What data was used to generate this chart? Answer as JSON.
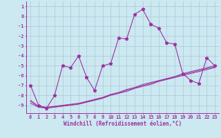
{
  "x": [
    0,
    1,
    2,
    3,
    4,
    5,
    6,
    7,
    8,
    9,
    10,
    11,
    12,
    13,
    14,
    15,
    16,
    17,
    18,
    19,
    20,
    21,
    22,
    23
  ],
  "y_main": [
    -7,
    -9,
    -9.3,
    -8,
    -5,
    -5.2,
    -4,
    -6.2,
    -7.5,
    -5.0,
    -4.8,
    -2.2,
    -2.3,
    0.2,
    0.7,
    -0.8,
    -1.2,
    -2.7,
    -2.8,
    -5.8,
    -6.5,
    -6.8,
    -4.2,
    -5.0
  ],
  "y_line1": [
    -8.5,
    -9.1,
    -9.2,
    -9.1,
    -9.0,
    -8.9,
    -8.8,
    -8.6,
    -8.4,
    -8.2,
    -7.9,
    -7.7,
    -7.4,
    -7.2,
    -6.9,
    -6.7,
    -6.5,
    -6.3,
    -6.1,
    -5.8,
    -5.6,
    -5.4,
    -5.2,
    -5.0
  ],
  "y_line2": [
    -8.8,
    -9.2,
    -9.3,
    -9.2,
    -9.1,
    -9.0,
    -8.9,
    -8.7,
    -8.5,
    -8.3,
    -8.0,
    -7.8,
    -7.6,
    -7.3,
    -7.1,
    -6.9,
    -6.6,
    -6.4,
    -6.2,
    -6.0,
    -5.8,
    -5.6,
    -5.4,
    -5.2
  ],
  "y_line3": [
    -8.6,
    -9.15,
    -9.25,
    -9.15,
    -9.05,
    -8.95,
    -8.85,
    -8.65,
    -8.45,
    -8.25,
    -7.95,
    -7.75,
    -7.5,
    -7.25,
    -7.0,
    -6.8,
    -6.55,
    -6.35,
    -6.15,
    -5.9,
    -5.7,
    -5.5,
    -5.3,
    -5.1
  ],
  "color_main": "#9b30a0",
  "color_lines": "#9b30a0",
  "bg_color": "#cce8f0",
  "grid_color": "#aac8d8",
  "ylabel_vals": [
    1,
    0,
    -1,
    -2,
    -3,
    -4,
    -5,
    -6,
    -7,
    -8,
    -9
  ],
  "xlabel_vals": [
    0,
    1,
    2,
    3,
    4,
    5,
    6,
    7,
    8,
    9,
    10,
    11,
    12,
    13,
    14,
    15,
    16,
    17,
    18,
    19,
    20,
    21,
    22,
    23
  ],
  "xlabel": "Windchill (Refroidissement éolien,°C)",
  "ylim": [
    -9.8,
    1.5
  ],
  "xlim": [
    -0.5,
    23.5
  ],
  "font_color": "#9b30a0",
  "marker": "*",
  "markersize": 3.5,
  "tick_fontsize": 5.0,
  "xlabel_fontsize": 5.5
}
